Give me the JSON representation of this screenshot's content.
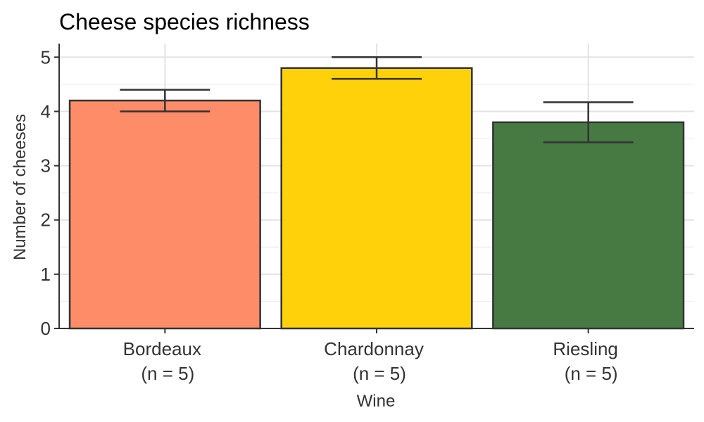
{
  "chart_data": {
    "type": "bar",
    "title": "Cheese species richness",
    "xlabel": "Wine",
    "ylabel": "Number of cheeses",
    "categories": [
      {
        "name": "Bordeaux",
        "n_label": "(n = 5)"
      },
      {
        "name": "Chardonnay",
        "n_label": "(n = 5)"
      },
      {
        "name": "Riesling",
        "n_label": "(n = 5)"
      }
    ],
    "values": [
      4.2,
      4.8,
      3.8
    ],
    "error_low": [
      4.0,
      4.6,
      3.43
    ],
    "error_high": [
      4.4,
      5.0,
      4.17
    ],
    "colors": [
      "#FF8C69",
      "#FFD10A",
      "#477A43"
    ],
    "ylim": [
      0,
      5.25
    ],
    "yticks": [
      0,
      1,
      2,
      3,
      4,
      5
    ],
    "grid": true,
    "legend": "none"
  }
}
